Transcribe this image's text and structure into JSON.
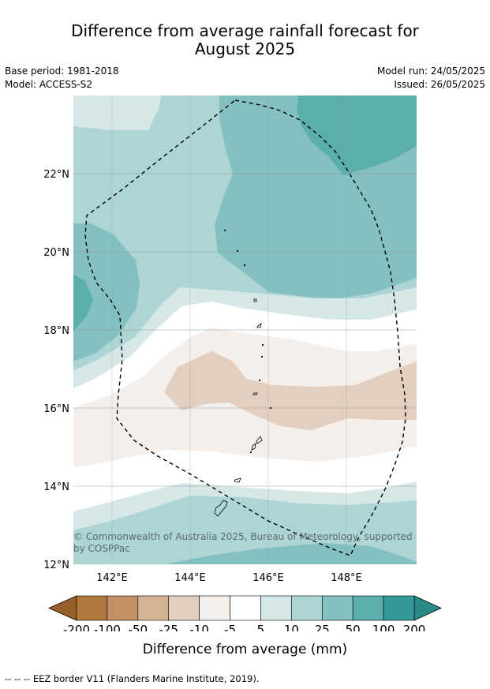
{
  "title_line1": "Difference from average rainfall forecast for",
  "title_line2": "August 2025",
  "meta": {
    "base_period": "Base period: 1981-2018",
    "model": "Model: ACCESS-S2",
    "model_run": "Model run: 24/05/2025",
    "issued": "Issued: 26/05/2025"
  },
  "map": {
    "lat_labels": [
      "22°N",
      "20°N",
      "18°N",
      "16°N",
      "14°N",
      "12°N"
    ],
    "lon_labels": [
      "142°E",
      "144°E",
      "146°E",
      "148°E"
    ],
    "copyright_line1": "© Commonwealth of Australia 2025, Bureau of Meteorology, supported",
    "copyright_line2": "by COSPPac",
    "colors": {
      "plus5_10": "#d5e8e7",
      "plus10_25": "#aed5d5",
      "plus25_50": "#84c0c0",
      "plus50_100": "#5aaeac",
      "minus5_10": "#f4efea",
      "minus10_25": "#e3cfbf",
      "gridline": "#8a9a99",
      "eez": "#000000"
    }
  },
  "colorbar": {
    "ticks": [
      "-200",
      "-100",
      "-50",
      "-25",
      "-10",
      "-5",
      "5",
      "10",
      "25",
      "50",
      "100",
      "200"
    ],
    "colors": [
      "#b1763b",
      "#c29167",
      "#d3b394",
      "#e3cfbf",
      "#f4efea",
      "#ffffff",
      "#d5e8e7",
      "#aed5d5",
      "#84c0c0",
      "#5aaeac",
      "#339a97"
    ],
    "under_color": "#9a5f2a",
    "over_color": "#2b8a86",
    "title": "Difference from average (mm)"
  },
  "footer": "--  --  -- EEZ border V11 (Flanders Marine Institute, 2019)."
}
